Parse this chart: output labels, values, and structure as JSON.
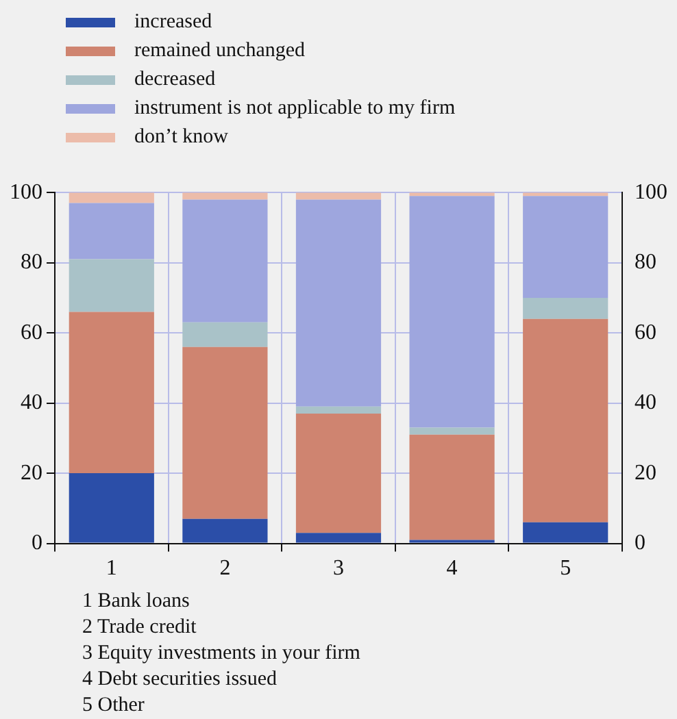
{
  "chart_data": {
    "type": "bar",
    "stacked": true,
    "categories": [
      "1",
      "2",
      "3",
      "4",
      "5"
    ],
    "series": [
      {
        "name": "increased",
        "color": "#2b4ea8",
        "values": [
          20,
          7,
          3,
          1,
          6
        ]
      },
      {
        "name": "remained unchanged",
        "color": "#cf8470",
        "values": [
          46,
          49,
          34,
          30,
          58
        ]
      },
      {
        "name": "decreased",
        "color": "#a9c2c8",
        "values": [
          15,
          7,
          2,
          2,
          6
        ]
      },
      {
        "name": "instrument is not applicable to my firm",
        "color": "#9ea6de",
        "values": [
          16,
          35,
          59,
          66,
          29
        ]
      },
      {
        "name": "don’t know",
        "color": "#ecbcaa",
        "values": [
          3,
          2,
          2,
          1,
          1
        ]
      }
    ],
    "ylim": [
      0,
      100
    ],
    "yticks": [
      0,
      20,
      40,
      60,
      80,
      100
    ],
    "y2lim": [
      0,
      100
    ],
    "y2ticks": [
      0,
      20,
      40,
      60,
      80,
      100
    ],
    "grid": true,
    "legend": "top",
    "annotations": [
      "1  Bank loans",
      "2  Trade credit",
      "3  Equity investments in your firm",
      "4  Debt securities issued",
      "5  Other"
    ]
  }
}
